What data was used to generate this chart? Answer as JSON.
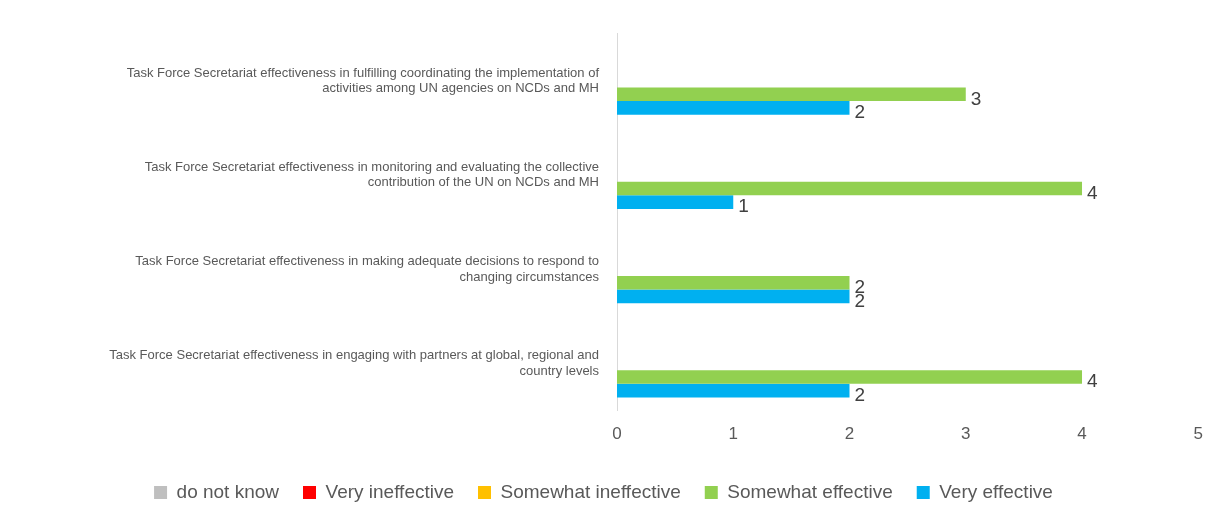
{
  "chart_data": {
    "type": "bar",
    "orientation": "horizontal",
    "categories": [
      "Task Force Secretariat effectiveness in fulfilling coordinating the implementation of activities among UN agencies on NCDs and MH",
      "Task Force Secretariat effectiveness in monitoring and evaluating the collective contribution of the UN on NCDs and MH",
      "Task Force Secretariat effectiveness in making adequate decisions to respond to changing circumstances",
      "Task Force Secretariat effectiveness in engaging with partners at global, regional and country levels"
    ],
    "series": [
      {
        "name": "do not know",
        "color": "#bfbfbf",
        "values": [
          null,
          null,
          null,
          null
        ]
      },
      {
        "name": "Very ineffective",
        "color": "#ff0000",
        "values": [
          null,
          null,
          null,
          null
        ]
      },
      {
        "name": "Somewhat ineffective",
        "color": "#ffc000",
        "values": [
          null,
          null,
          null,
          null
        ]
      },
      {
        "name": "Somewhat effective",
        "color": "#92d050",
        "values": [
          3,
          4,
          2,
          4
        ]
      },
      {
        "name": "Very effective",
        "color": "#00b0f0",
        "values": [
          2,
          1,
          2,
          2
        ]
      }
    ],
    "xlim": [
      0,
      5
    ],
    "xticks": [
      0,
      1,
      2,
      3,
      4,
      5
    ],
    "grid": false,
    "legend": "bottom",
    "data_labels": true
  }
}
